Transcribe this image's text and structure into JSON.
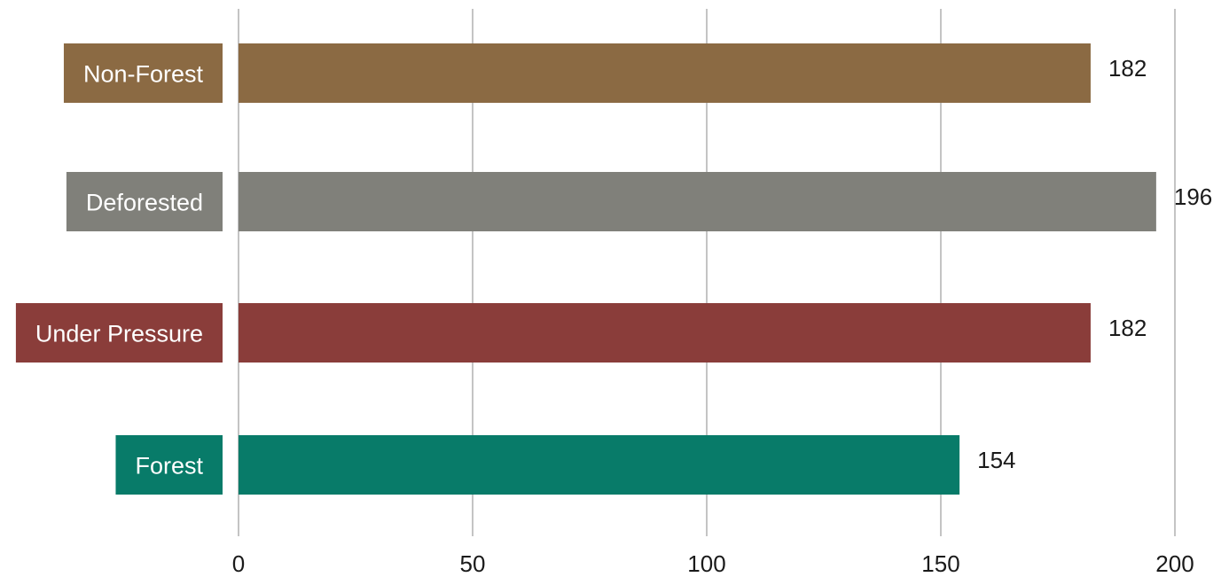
{
  "chart_data": {
    "type": "bar",
    "orientation": "horizontal",
    "categories": [
      "Non-Forest",
      "Deforested",
      "Under Pressure",
      "Forest"
    ],
    "values": [
      182,
      196,
      182,
      154
    ],
    "value_labels": [
      "182",
      "196",
      "182",
      "154"
    ],
    "colors": [
      "#8b6a43",
      "#80807a",
      "#8a3d3a",
      "#087b69"
    ],
    "xlim": [
      0,
      200
    ],
    "xticks": [
      0,
      50,
      100,
      150,
      200
    ],
    "xtick_labels": [
      "0",
      "50",
      "100",
      "150",
      "200"
    ],
    "grid": true,
    "title": "",
    "xlabel": "",
    "ylabel": ""
  }
}
